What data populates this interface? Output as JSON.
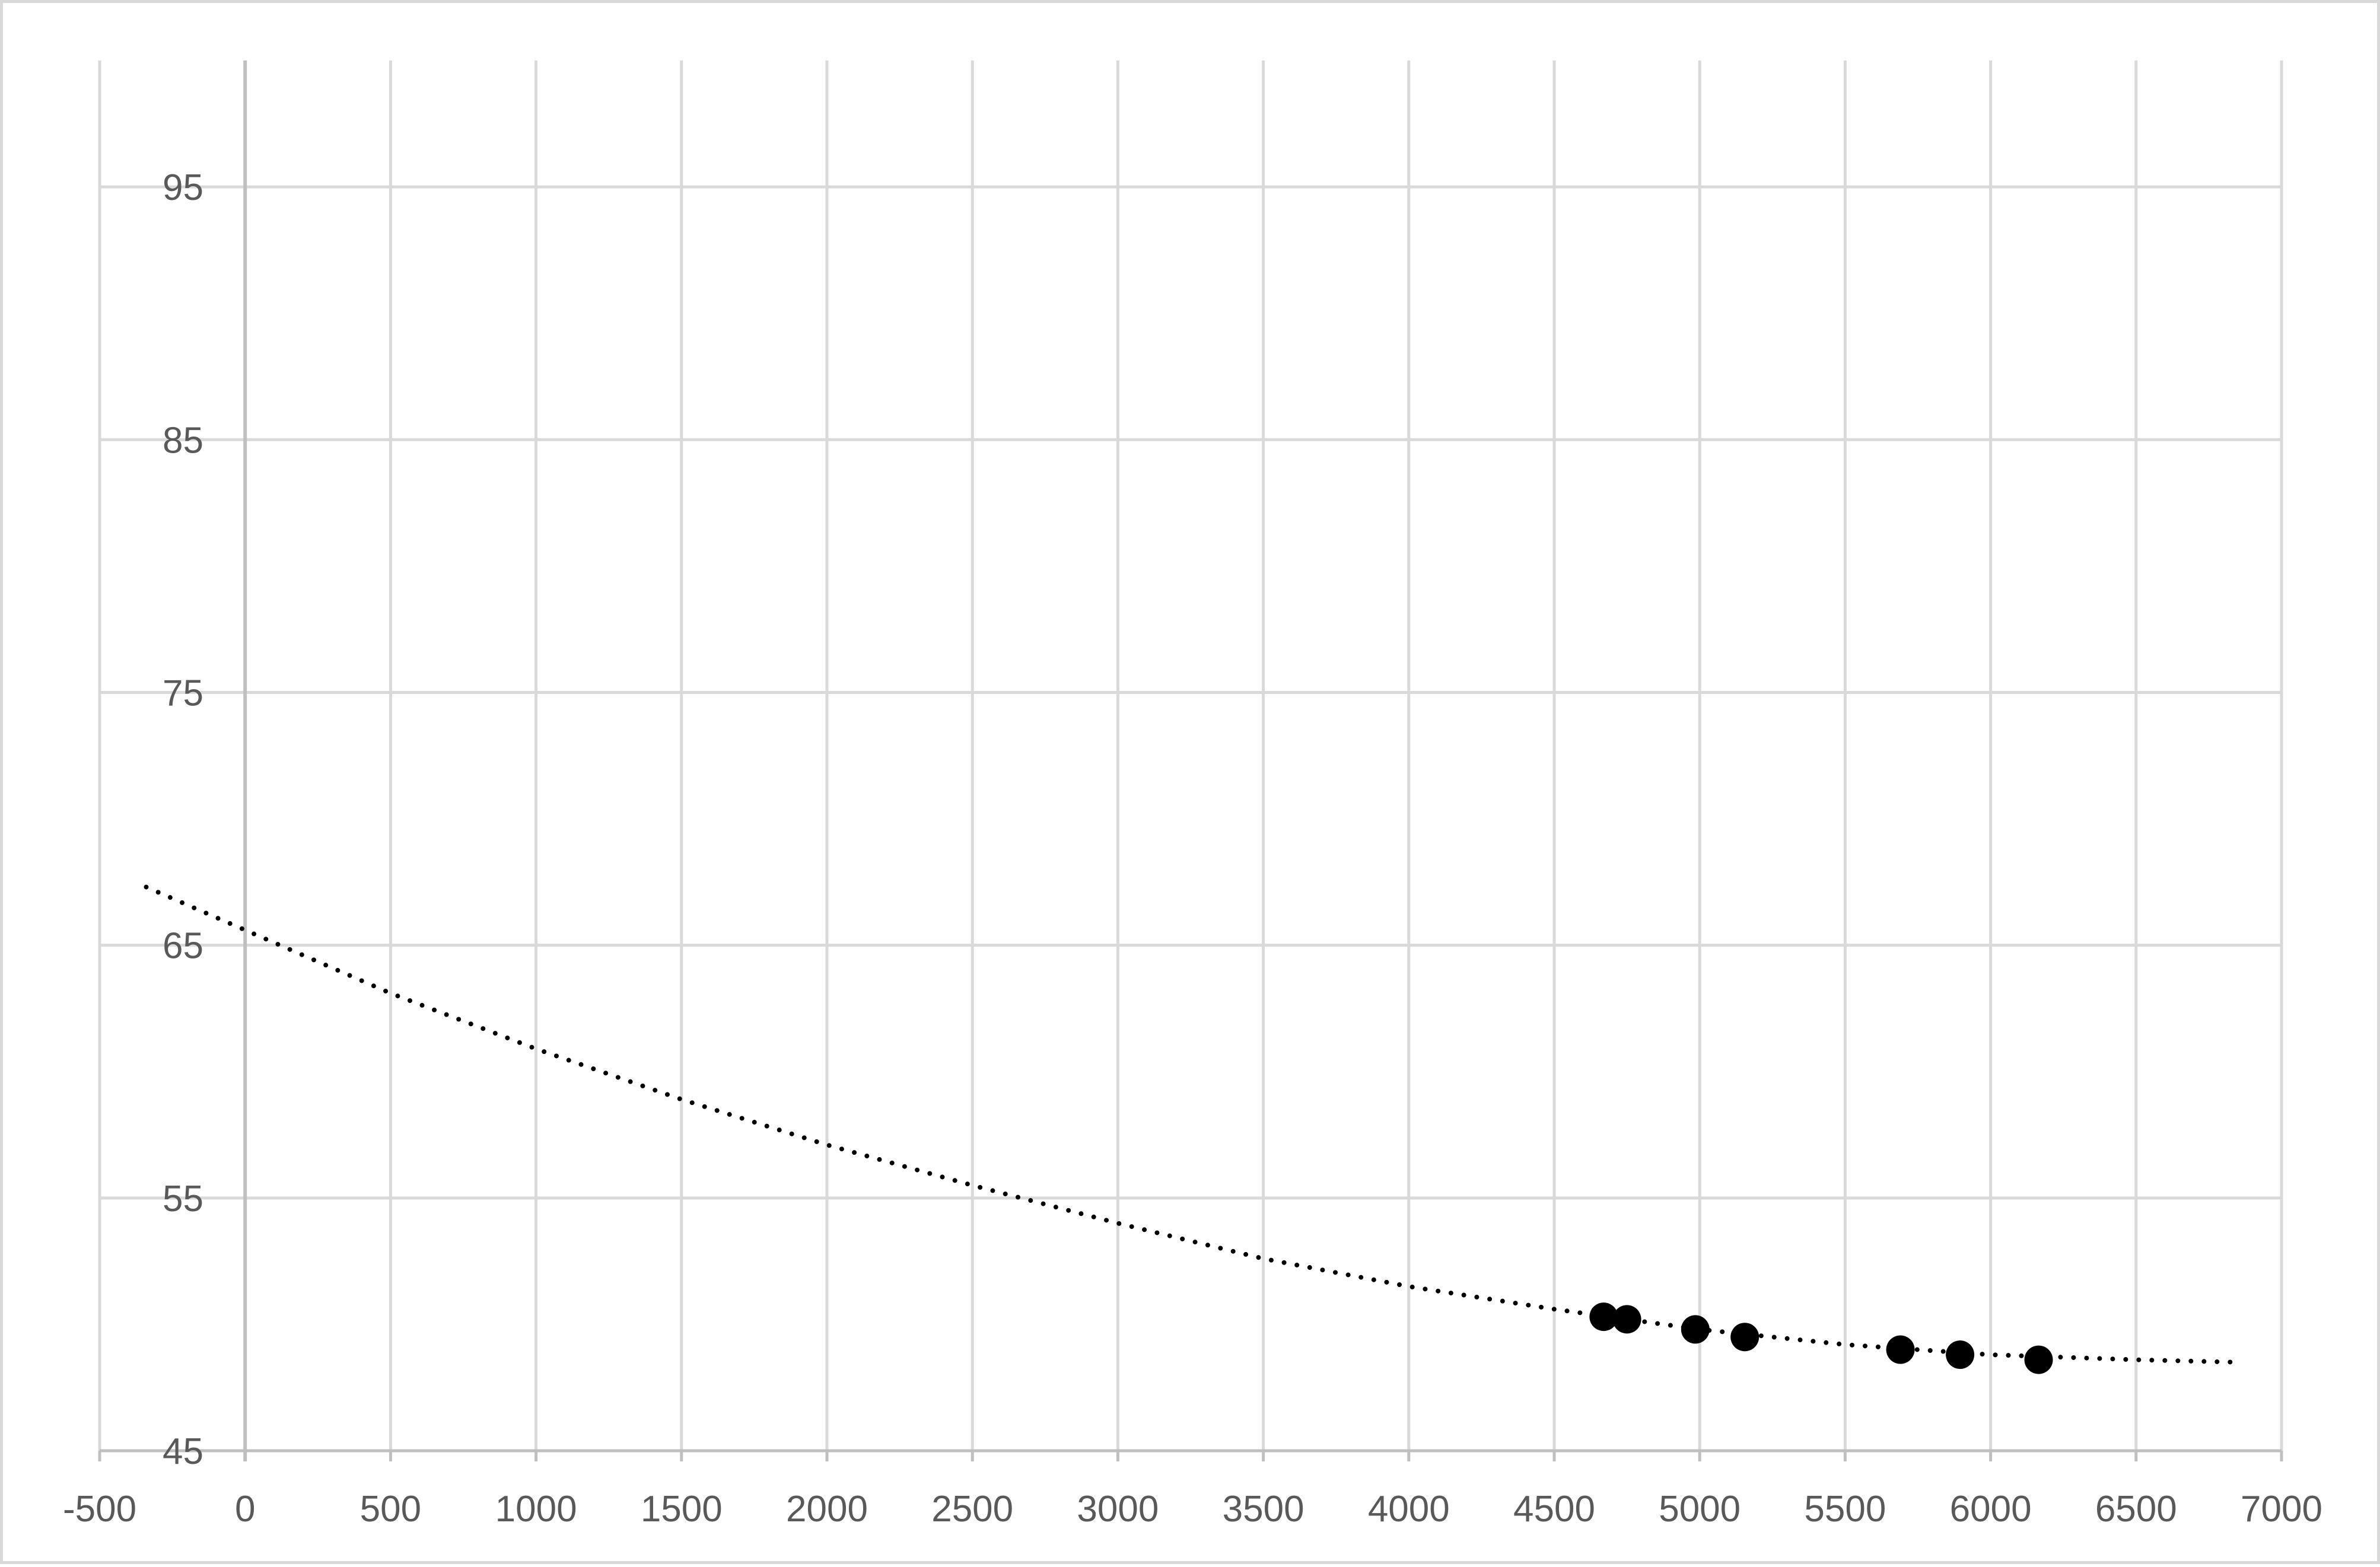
{
  "chart_data": {
    "type": "scatter",
    "title": "",
    "xlabel": "",
    "ylabel": "",
    "xlim": [
      -500,
      7000
    ],
    "ylim": [
      45,
      100
    ],
    "x_ticks": [
      -500,
      0,
      500,
      1000,
      1500,
      2000,
      2500,
      3000,
      3500,
      4000,
      4500,
      5000,
      5500,
      6000,
      6500,
      7000
    ],
    "x_tick_labels": [
      "-500",
      "0",
      "500",
      "1000",
      "1500",
      "2000",
      "2500",
      "3000",
      "3500",
      "4000",
      "4500",
      "5000",
      "5500",
      "6000",
      "6500",
      "7000"
    ],
    "y_ticks": [
      45,
      55,
      65,
      75,
      85,
      95
    ],
    "y_tick_labels": [
      "45",
      "55",
      "65",
      "75",
      "85",
      "95"
    ],
    "grid": true,
    "legend": "none",
    "series": [
      {
        "values": [
          {
            "x": 4670,
            "y": 50.3
          },
          {
            "x": 4750,
            "y": 50.2
          },
          {
            "x": 4985,
            "y": 49.8
          },
          {
            "x": 5155,
            "y": 49.5
          },
          {
            "x": 5690,
            "y": 49.0
          },
          {
            "x": 5895,
            "y": 48.8
          },
          {
            "x": 6165,
            "y": 48.6
          }
        ],
        "color": "#000000"
      }
    ],
    "trendline": {
      "style": "dotted",
      "color": "#000000",
      "x_range": [
        -340,
        6850
      ],
      "points": [
        {
          "x": -340,
          "y": 67.3
        },
        {
          "x": 0,
          "y": 65.6
        },
        {
          "x": 500,
          "y": 63.1
        },
        {
          "x": 1000,
          "y": 60.9
        },
        {
          "x": 1500,
          "y": 58.9
        },
        {
          "x": 2000,
          "y": 57.1
        },
        {
          "x": 2500,
          "y": 55.5
        },
        {
          "x": 3000,
          "y": 54.0
        },
        {
          "x": 3500,
          "y": 52.6
        },
        {
          "x": 4000,
          "y": 51.5
        },
        {
          "x": 4500,
          "y": 50.6
        },
        {
          "x": 5000,
          "y": 49.8
        },
        {
          "x": 5500,
          "y": 49.2
        },
        {
          "x": 6000,
          "y": 48.8
        },
        {
          "x": 6500,
          "y": 48.6
        },
        {
          "x": 6850,
          "y": 48.5
        }
      ]
    },
    "colors": {
      "gridline": "#d9d9d9",
      "axis": "#bfbfbf",
      "tick_text": "#595959",
      "marker": "#000000"
    }
  }
}
